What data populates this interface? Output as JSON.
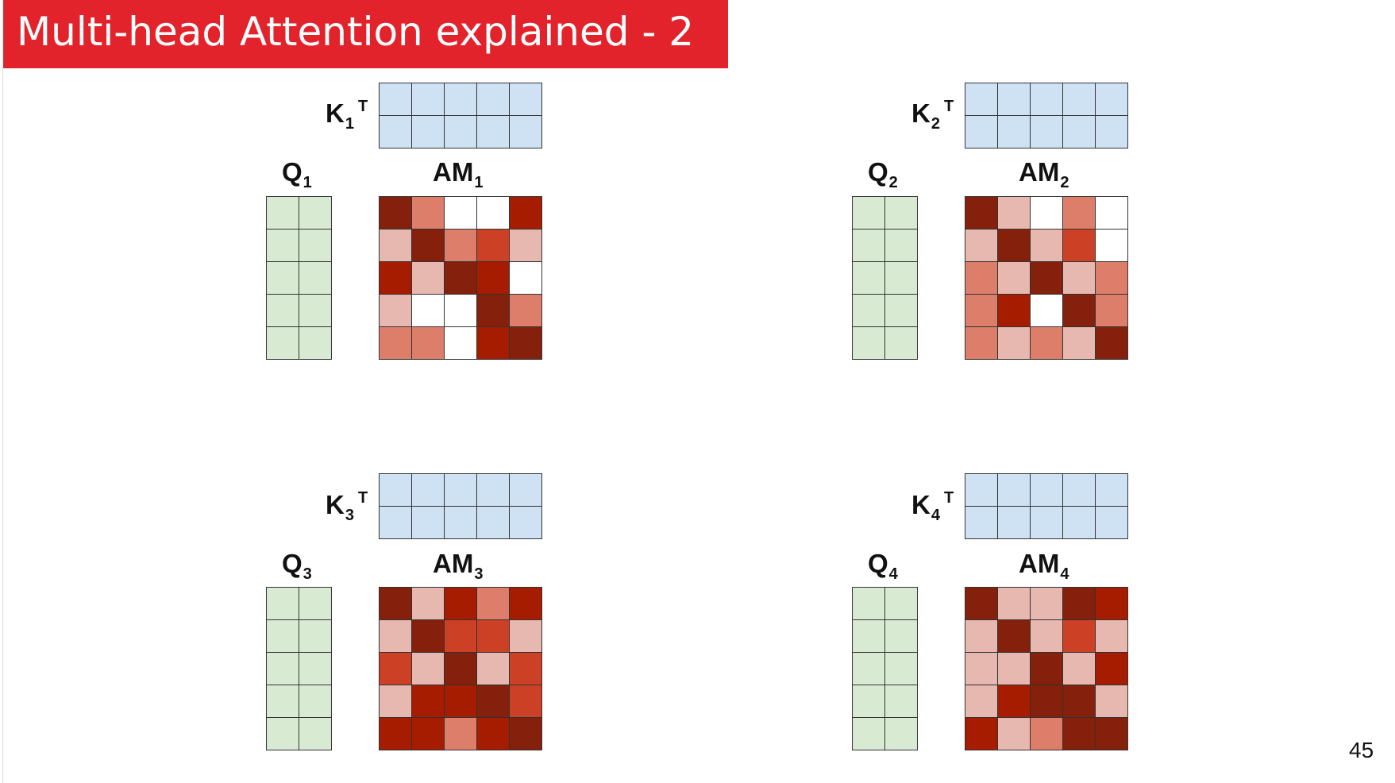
{
  "slide": {
    "title": "Multi-head Attention explained - 2",
    "page_number": "45"
  },
  "colors": {
    "title_bar": "#e3232c",
    "key_cells": "#cfe2f3",
    "query_cells": "#d9ead3",
    "attention_levels": [
      "#ffffff",
      "#e6b8b0",
      "#dd7e6b",
      "#cc4125",
      "#a61c00",
      "#85200c"
    ]
  },
  "heads": [
    {
      "k_label": "K",
      "k_sub": "1",
      "k_sup": "T",
      "q_label": "Q",
      "q_sub": "1",
      "am_label": "AM",
      "am_sub": "1",
      "am_levels": [
        [
          5,
          2,
          0,
          0,
          4
        ],
        [
          1,
          5,
          2,
          3,
          1
        ],
        [
          4,
          1,
          5,
          4,
          0
        ],
        [
          1,
          0,
          0,
          5,
          2
        ],
        [
          2,
          2,
          0,
          4,
          5
        ]
      ]
    },
    {
      "k_label": "K",
      "k_sub": "2",
      "k_sup": "T",
      "q_label": "Q",
      "q_sub": "2",
      "am_label": "AM",
      "am_sub": "2",
      "am_levels": [
        [
          5,
          1,
          0,
          2,
          0
        ],
        [
          1,
          5,
          1,
          3,
          0
        ],
        [
          2,
          1,
          5,
          1,
          2
        ],
        [
          2,
          4,
          0,
          5,
          2
        ],
        [
          2,
          1,
          2,
          1,
          5
        ]
      ]
    },
    {
      "k_label": "K",
      "k_sub": "3",
      "k_sup": "T",
      "q_label": "Q",
      "q_sub": "3",
      "am_label": "AM",
      "am_sub": "3",
      "am_levels": [
        [
          5,
          1,
          4,
          2,
          4
        ],
        [
          1,
          5,
          3,
          3,
          1
        ],
        [
          3,
          1,
          5,
          1,
          3
        ],
        [
          1,
          4,
          4,
          5,
          3
        ],
        [
          4,
          4,
          2,
          4,
          5
        ]
      ]
    },
    {
      "k_label": "K",
      "k_sub": "4",
      "k_sup": "T",
      "q_label": "Q",
      "q_sub": "4",
      "am_label": "AM",
      "am_sub": "4",
      "am_levels": [
        [
          5,
          1,
          1,
          5,
          4
        ],
        [
          1,
          5,
          1,
          3,
          1
        ],
        [
          1,
          1,
          5,
          1,
          4
        ],
        [
          1,
          4,
          5,
          5,
          1
        ],
        [
          4,
          1,
          2,
          5,
          5
        ]
      ]
    }
  ]
}
